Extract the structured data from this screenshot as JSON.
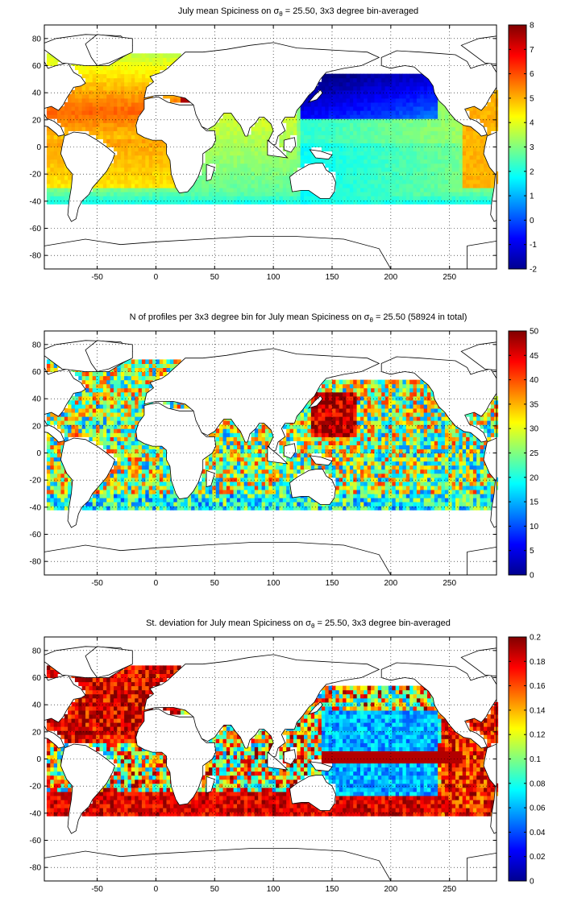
{
  "chart_data": [
    {
      "type": "heatmap",
      "title_pre": "July mean Spiciness on ",
      "title_sym": "σ",
      "title_sub": "θ",
      "title_post": " = 25.50, 3x3 degree bin-averaged",
      "xlim": [
        -95,
        290
      ],
      "ylim": [
        -90,
        90
      ],
      "x_ticks": [
        -50,
        0,
        50,
        100,
        150,
        200,
        250
      ],
      "y_ticks": [
        -80,
        -60,
        -40,
        -20,
        0,
        20,
        40,
        60,
        80
      ],
      "colorbar": {
        "min": -2,
        "max": 8,
        "ticks": [
          -2,
          -1,
          0,
          1,
          2,
          3,
          4,
          5,
          6,
          7,
          8
        ]
      },
      "colormap": "jet",
      "grid": true
    },
    {
      "type": "heatmap",
      "title_pre": "N of profiles per 3x3 degree bin for July mean Spiciness on ",
      "title_sym": "σ",
      "title_sub": "θ",
      "title_post": " = 25.50 (58924 in total)",
      "xlim": [
        -95,
        290
      ],
      "ylim": [
        -90,
        90
      ],
      "x_ticks": [
        -50,
        0,
        50,
        100,
        150,
        200,
        250
      ],
      "y_ticks": [
        -80,
        -60,
        -40,
        -20,
        0,
        20,
        40,
        60,
        80
      ],
      "colorbar": {
        "min": 0,
        "max": 50,
        "ticks": [
          0,
          5,
          10,
          15,
          20,
          25,
          30,
          35,
          40,
          45,
          50
        ]
      },
      "colormap": "jet",
      "grid": true
    },
    {
      "type": "heatmap",
      "title_pre": "St. deviation for July mean Spiciness on ",
      "title_sym": "σ",
      "title_sub": "θ",
      "title_post": " = 25.50, 3x3 degree bin-averaged",
      "xlim": [
        -95,
        290
      ],
      "ylim": [
        -90,
        90
      ],
      "x_ticks": [
        -50,
        0,
        50,
        100,
        150,
        200,
        250
      ],
      "y_ticks": [
        -80,
        -60,
        -40,
        -20,
        0,
        20,
        40,
        60,
        80
      ],
      "colorbar": {
        "min": 0,
        "max": 0.2,
        "ticks": [
          0,
          0.02,
          0.04,
          0.06,
          0.08,
          0.1,
          0.12,
          0.14,
          0.16,
          0.18,
          0.2
        ]
      },
      "colormap": "jet",
      "grid": true
    }
  ]
}
